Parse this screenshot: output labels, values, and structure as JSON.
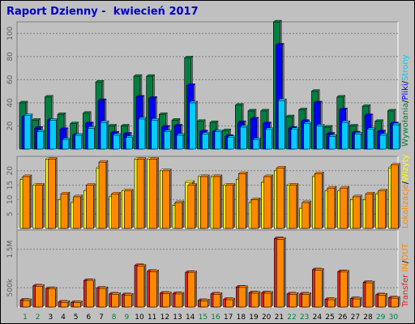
{
  "title": "Raport Dzienny -  kwiecień 2017",
  "colors": {
    "background": "#c0c0c0",
    "title": "#0000cc",
    "grid": "#808080",
    "visits": "#00a050",
    "pages": "#0000ff",
    "files": "#00ccff",
    "sites": "#ff8800",
    "kbytes": "#dd2222",
    "in_out": "#ff8800",
    "hits_side": "#008040"
  },
  "legends": {
    "panel1": [
      {
        "text": "Wywołania",
        "color": "#008040"
      },
      {
        "text": "/",
        "color": "#000000"
      },
      {
        "text": "Pliki",
        "color": "#0000ff"
      },
      {
        "text": "/",
        "color": "#000000"
      },
      {
        "text": "Strony",
        "color": "#00ccff"
      }
    ],
    "panel2": [
      {
        "text": "Lokalizacje",
        "color": "#ff8800"
      },
      {
        "text": "/",
        "color": "#000000"
      },
      {
        "text": "Wizyty",
        "color": "#ffff00"
      }
    ],
    "panel3": [
      {
        "text": "IN",
        "color": "#ff8800"
      },
      {
        "text": "/",
        "color": "#000000"
      },
      {
        "text": "OUT",
        "color": "#ff8800"
      },
      {
        "text": "Transfer",
        "color": "#dd2222"
      }
    ]
  },
  "chart_data": [
    {
      "type": "bar",
      "name": "hits-files-pages",
      "ylim": [
        0,
        110
      ],
      "yticks": [
        "20",
        "40",
        "60",
        "80",
        "100"
      ],
      "categories": [
        "1",
        "2",
        "3",
        "4",
        "5",
        "6",
        "7",
        "8",
        "9",
        "10",
        "11",
        "12",
        "13",
        "14",
        "15",
        "16",
        "17",
        "18",
        "19",
        "20",
        "21",
        "22",
        "23",
        "24",
        "25",
        "26",
        "27",
        "28",
        "29",
        "30"
      ],
      "series": [
        {
          "name": "Wywołania",
          "color": "#008040",
          "values": [
            40,
            25,
            45,
            30,
            22,
            31,
            58,
            20,
            20,
            63,
            63,
            30,
            25,
            79,
            24,
            23,
            16,
            38,
            33,
            33,
            110,
            28,
            34,
            50,
            19,
            45,
            20,
            37,
            24,
            33
          ]
        },
        {
          "name": "Pliki",
          "color": "#0000ff",
          "values": [
            28,
            18,
            25,
            17,
            12,
            22,
            42,
            14,
            13,
            45,
            44,
            19,
            20,
            55,
            15,
            15,
            11,
            23,
            26,
            22,
            90,
            18,
            24,
            40,
            13,
            34,
            14,
            29,
            15,
            22
          ]
        },
        {
          "name": "Strony",
          "color": "#00ccff",
          "values": [
            29,
            15,
            25,
            8,
            12,
            18,
            23,
            12,
            10,
            26,
            25,
            15,
            12,
            40,
            13,
            15,
            10,
            19,
            8,
            17,
            42,
            17,
            22,
            20,
            11,
            23,
            13,
            17,
            12,
            21
          ]
        }
      ],
      "x_label_colors": [
        "#008040",
        "#008040",
        "#000000",
        "#000000",
        "#000000",
        "#000000",
        "#000000",
        "#008040",
        "#008040",
        "#000000",
        "#000000",
        "#000000",
        "#000000",
        "#000000",
        "#008040",
        "#008040",
        "#000000",
        "#000000",
        "#000000",
        "#000000",
        "#000000",
        "#008040",
        "#008040",
        "#000000",
        "#000000",
        "#000000",
        "#000000",
        "#000000",
        "#008040",
        "#008040"
      ]
    },
    {
      "type": "bar",
      "name": "visits-sites",
      "ylim": [
        0,
        25
      ],
      "yticks": [
        "5",
        "10",
        "15",
        "20"
      ],
      "series": [
        {
          "name": "Wizyty",
          "color": "#ffff00",
          "values": [
            17,
            15,
            24,
            10,
            9,
            13,
            21,
            11,
            13,
            24,
            24,
            20,
            8,
            16,
            18,
            18,
            15,
            17,
            9,
            16,
            20,
            15,
            7,
            18,
            13,
            13,
            10,
            10,
            12,
            21
          ]
        },
        {
          "name": "Lokalizacje",
          "color": "#ff8800",
          "values": [
            18,
            15,
            24,
            12,
            11,
            15,
            23,
            12,
            13,
            24,
            24,
            20,
            9,
            15,
            18,
            18,
            15,
            19,
            10,
            18,
            21,
            15,
            9,
            19,
            14,
            14,
            11,
            12,
            13,
            22
          ]
        }
      ]
    },
    {
      "type": "bar",
      "name": "kbytes",
      "ylim": [
        0,
        2000
      ],
      "yticks": [
        "500k",
        "1.5M"
      ],
      "series": [
        {
          "name": "Transfer",
          "color": "#dd2222",
          "values": [
            180,
            550,
            480,
            130,
            120,
            690,
            490,
            340,
            320,
            1080,
            930,
            360,
            350,
            900,
            170,
            340,
            200,
            520,
            370,
            370,
            1780,
            340,
            340,
            970,
            200,
            920,
            220,
            640,
            320,
            240
          ]
        },
        {
          "name": "IN/OUT",
          "color": "#ff8800",
          "values": [
            170,
            540,
            470,
            120,
            115,
            680,
            480,
            330,
            310,
            1060,
            920,
            350,
            340,
            890,
            160,
            330,
            190,
            510,
            360,
            360,
            1760,
            330,
            330,
            960,
            190,
            910,
            210,
            630,
            310,
            230
          ]
        }
      ]
    }
  ]
}
